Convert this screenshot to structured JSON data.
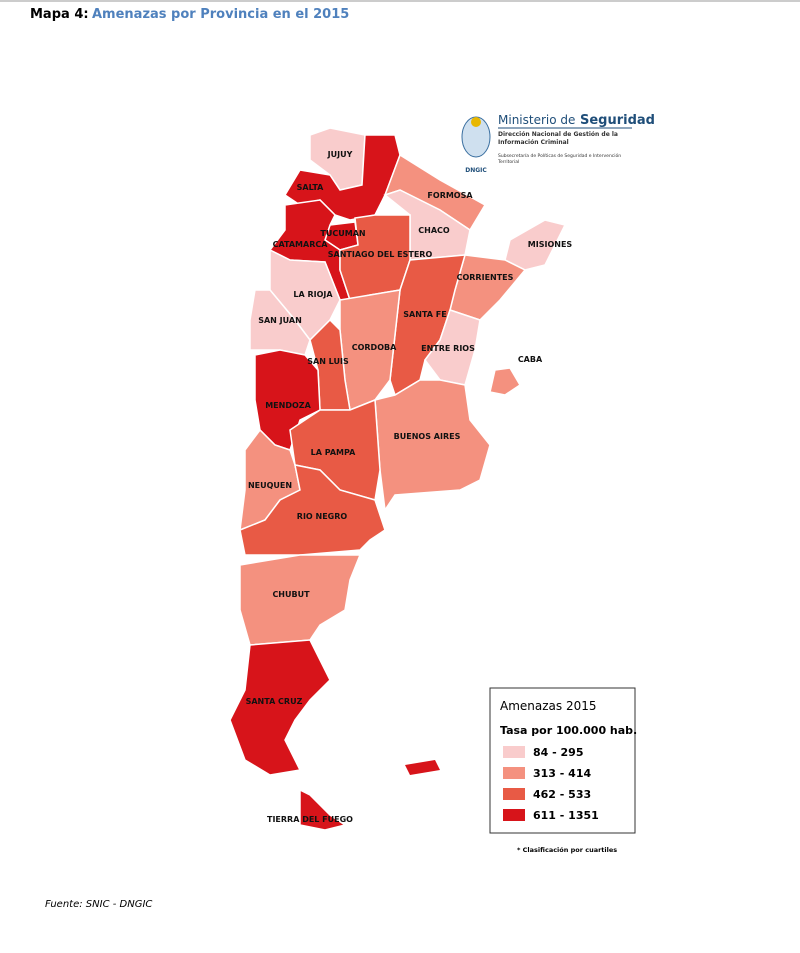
{
  "header": {
    "label": "Mapa 4:",
    "title": "Amenazas por Provincia en el 2015"
  },
  "logo": {
    "ministry": "Ministerio de",
    "ministry_bold": "Seguridad",
    "direction_1": "Dirección Nacional de Gestión de la",
    "direction_2": "Información Criminal",
    "sub_1": "Subsecretaría de Políticas de Seguridad e Intervención",
    "sub_2": "Territorial",
    "acronym": "DNGIC"
  },
  "provinces": [
    {
      "label": "JUJUY",
      "color": "#f9cccc"
    },
    {
      "label": "SALTA",
      "color": "#d7141a"
    },
    {
      "label": "FORMOSA",
      "color": "#f4917f"
    },
    {
      "label": "CHACO",
      "color": "#f9cccc"
    },
    {
      "label": "MISIONES",
      "color": "#f9cccc"
    },
    {
      "label": "TUCUMAN",
      "color": "#d7141a"
    },
    {
      "label": "CATAMARCA",
      "color": "#d7141a"
    },
    {
      "label": "SANTIAGO DEL ESTERO",
      "color": "#e85a45"
    },
    {
      "label": "CORRIENTES",
      "color": "#f4917f"
    },
    {
      "label": "LA RIOJA",
      "color": "#f9cccc"
    },
    {
      "label": "SAN JUAN",
      "color": "#f9cccc"
    },
    {
      "label": "SANTA FE",
      "color": "#e85a45"
    },
    {
      "label": "CORDOBA",
      "color": "#f4917f"
    },
    {
      "label": "ENTRE RIOS",
      "color": "#f9cccc"
    },
    {
      "label": "SAN LUIS",
      "color": "#e85a45"
    },
    {
      "label": "CABA",
      "color": "#f4917f"
    },
    {
      "label": "MENDOZA",
      "color": "#d7141a"
    },
    {
      "label": "BUENOS AIRES",
      "color": "#f4917f"
    },
    {
      "label": "LA PAMPA",
      "color": "#e85a45"
    },
    {
      "label": "NEUQUEN",
      "color": "#f4917f"
    },
    {
      "label": "RIO NEGRO",
      "color": "#e85a45"
    },
    {
      "label": "CHUBUT",
      "color": "#f4917f"
    },
    {
      "label": "SANTA CRUZ",
      "color": "#d7141a"
    },
    {
      "label": "TIERRA DEL FUEGO",
      "color": "#d7141a"
    }
  ],
  "islands": {
    "color": "#d7141a"
  },
  "legend": {
    "title": "Amenazas 2015",
    "subtitle": "Tasa por 100.000 hab.",
    "items": [
      {
        "label": "84 - 295",
        "color": "#f9cccc"
      },
      {
        "label": "313 - 414",
        "color": "#f4917f"
      },
      {
        "label": "462 - 533",
        "color": "#e85a45"
      },
      {
        "label": "611 - 1351",
        "color": "#d7141a"
      }
    ]
  },
  "note": "* Clasificación por cuartiles",
  "source": "Fuente: SNIC - DNGIC"
}
